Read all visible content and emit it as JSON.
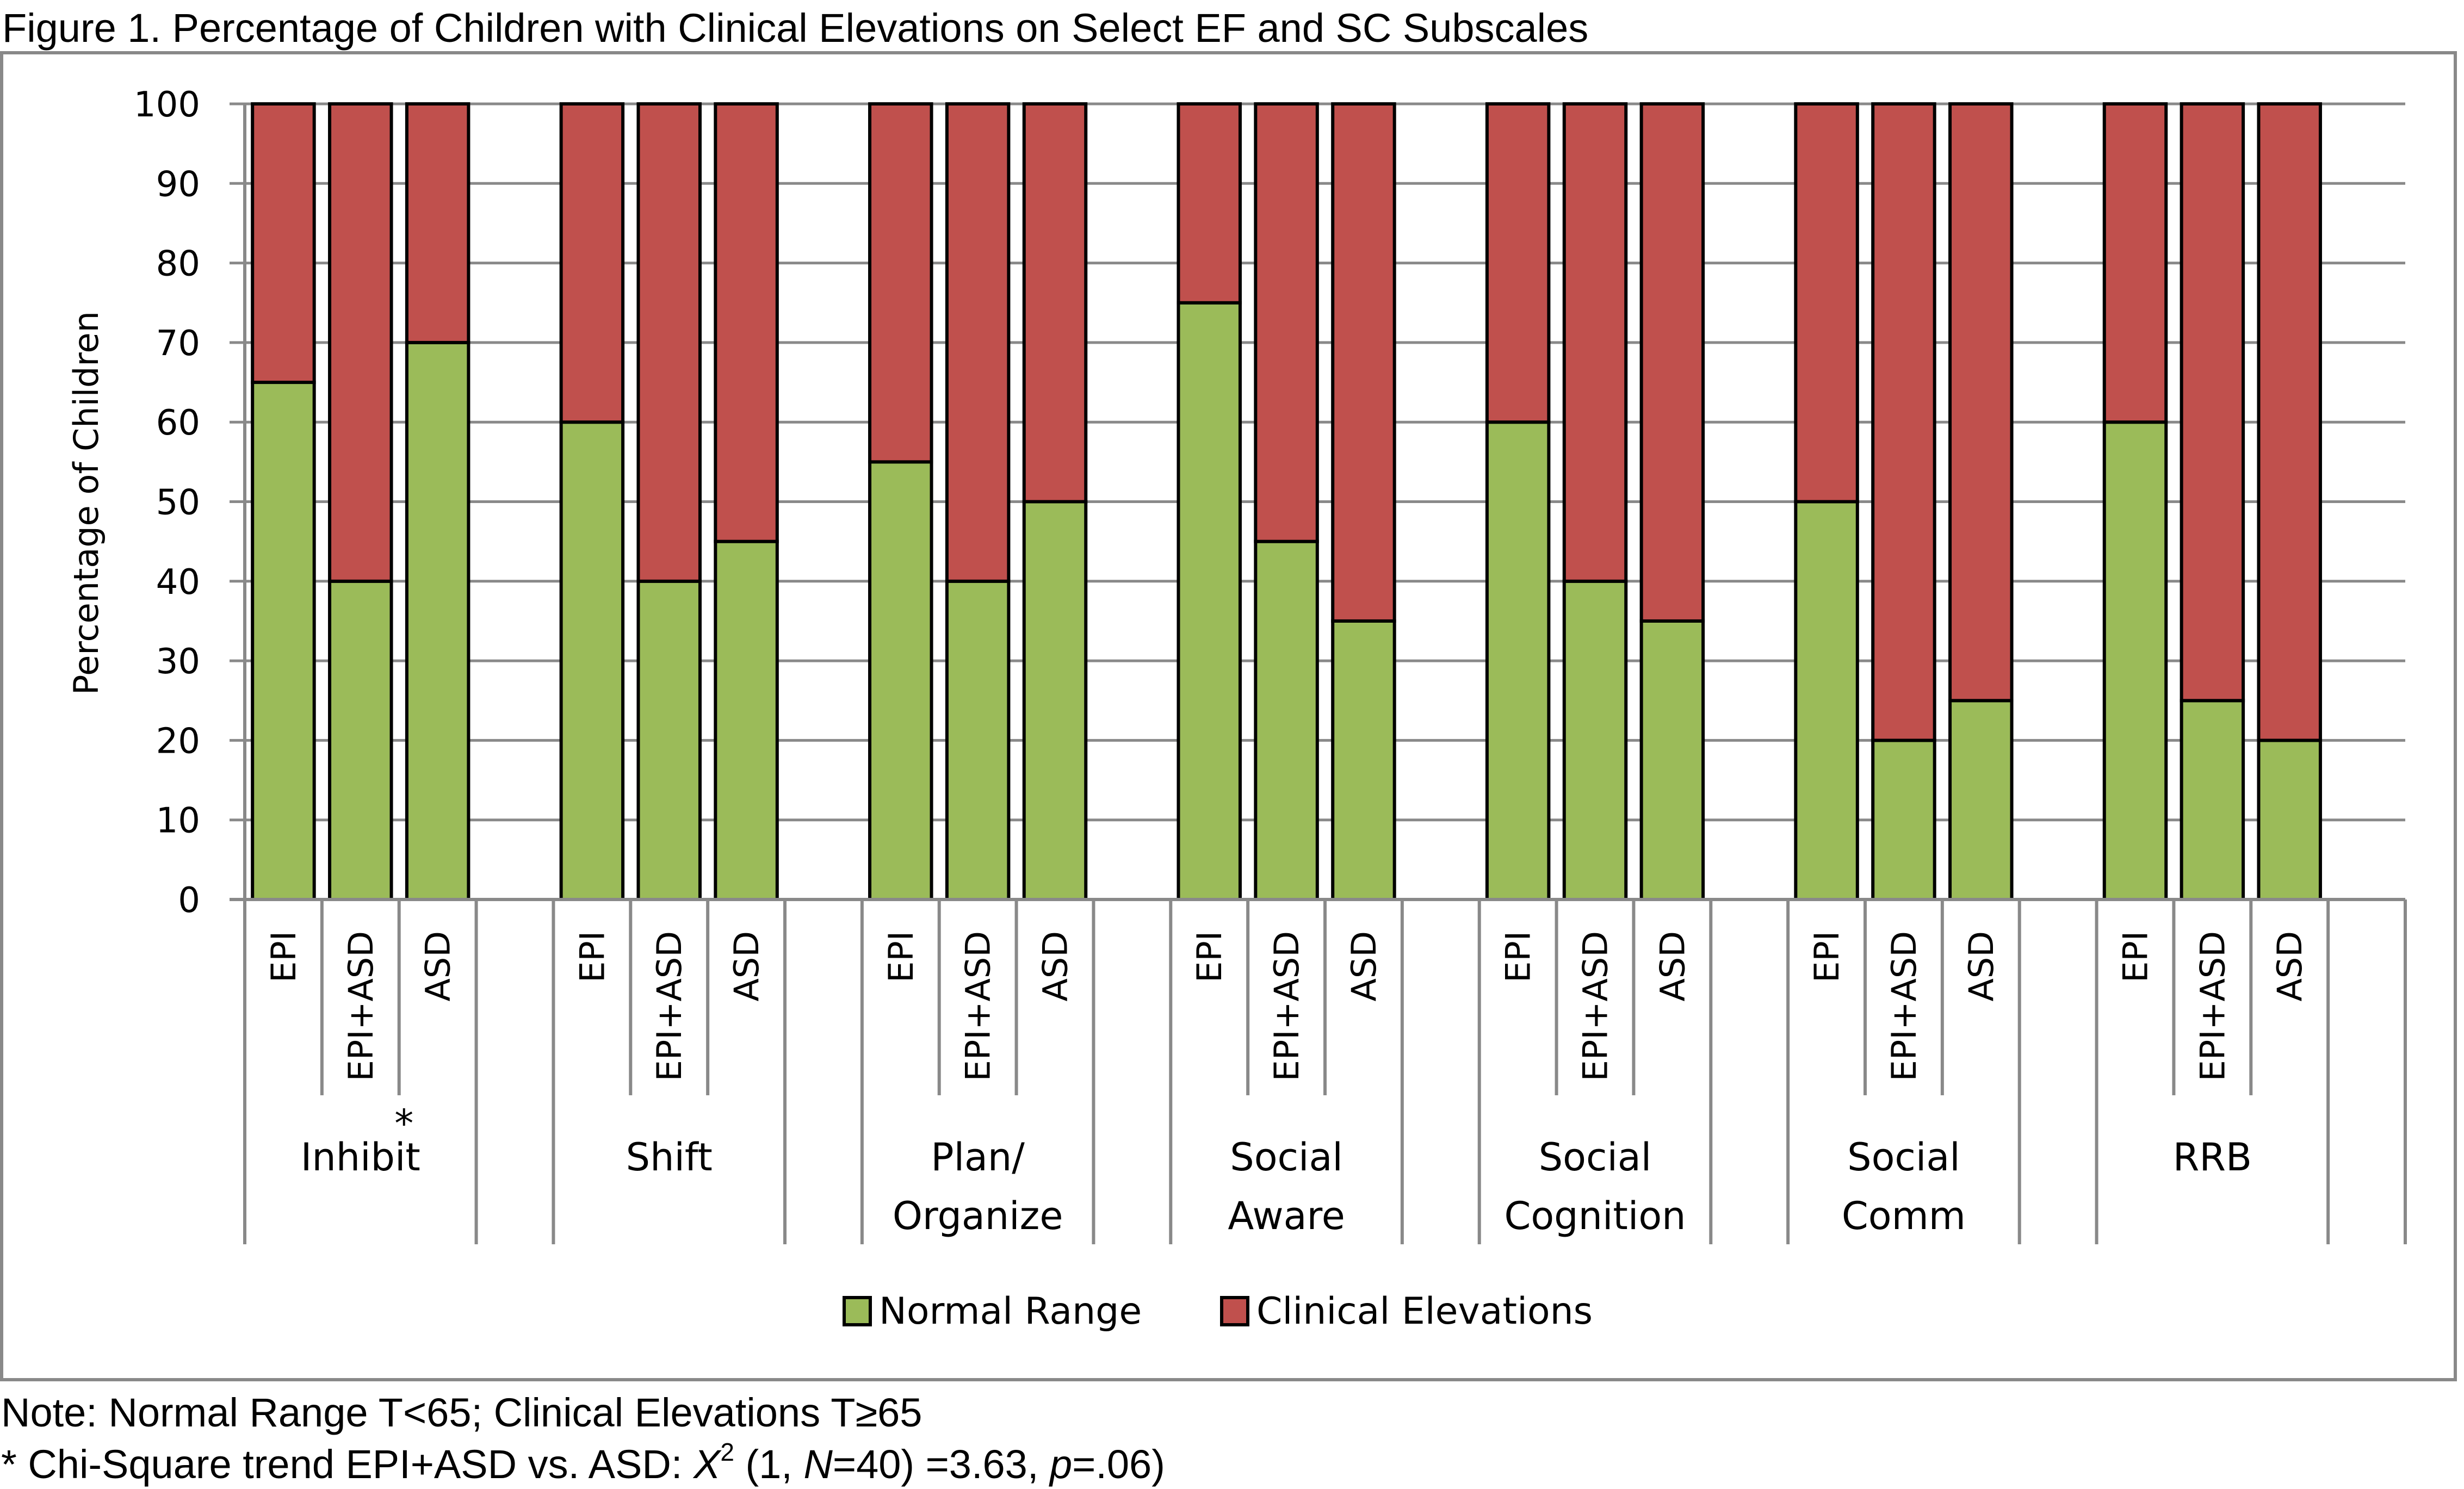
{
  "figure": {
    "title": "Figure 1. Percentage of Children with Clinical Elevations on Select EF and SC Subscales",
    "note_line1": "Note: Normal Range T<65; Clinical Elevations T≥65",
    "note_line2": {
      "prefix": "* Chi-Square trend EPI+ASD vs. ASD: ",
      "stat_symbol": "X",
      "stat_superscript": "2",
      "paren_open": " (1, ",
      "n_symbol": "N",
      "n_value": "=40) =3.63, ",
      "p_symbol": "p",
      "p_value": "=.06)"
    }
  },
  "chart_data": {
    "type": "bar",
    "stacked": true,
    "title": "Figure 1. Percentage of Children with Clinical Elevations on Select EF and SC Subscales",
    "xlabel": "",
    "ylabel": "Percentage of Children",
    "ylim": [
      0,
      100
    ],
    "yticks": [
      0,
      10,
      20,
      30,
      40,
      50,
      60,
      70,
      80,
      90,
      100
    ],
    "grid": true,
    "legend_position": "bottom",
    "subgroups": [
      "EPI",
      "EPI+ASD",
      "ASD"
    ],
    "groups": [
      {
        "label_lines": [
          "Inhibit"
        ],
        "annotation": "*"
      },
      {
        "label_lines": [
          "Shift"
        ],
        "annotation": ""
      },
      {
        "label_lines": [
          "Plan/",
          "Organize"
        ],
        "annotation": ""
      },
      {
        "label_lines": [
          "Social",
          "Aware"
        ],
        "annotation": ""
      },
      {
        "label_lines": [
          "Social",
          "Cognition"
        ],
        "annotation": ""
      },
      {
        "label_lines": [
          "Social",
          "Comm"
        ],
        "annotation": ""
      },
      {
        "label_lines": [
          "RRB"
        ],
        "annotation": ""
      }
    ],
    "categories": [
      "Inhibit EPI",
      "Inhibit EPI+ASD",
      "Inhibit ASD",
      "Shift EPI",
      "Shift EPI+ASD",
      "Shift ASD",
      "Plan/Organize EPI",
      "Plan/Organize EPI+ASD",
      "Plan/Organize ASD",
      "Social Aware EPI",
      "Social Aware EPI+ASD",
      "Social Aware ASD",
      "Social Cognition EPI",
      "Social Cognition EPI+ASD",
      "Social Cognition ASD",
      "Social Comm EPI",
      "Social Comm EPI+ASD",
      "Social Comm ASD",
      "RRB EPI",
      "RRB EPI+ASD",
      "RRB ASD"
    ],
    "series": [
      {
        "name": "Normal Range",
        "color": "#9bbb59",
        "values": [
          65,
          40,
          70,
          60,
          40,
          45,
          55,
          40,
          50,
          75,
          45,
          35,
          60,
          40,
          35,
          50,
          20,
          25,
          60,
          25,
          20
        ]
      },
      {
        "name": "Clinical Elevations",
        "color": "#c0504d",
        "values": [
          35,
          60,
          30,
          40,
          60,
          55,
          45,
          60,
          50,
          25,
          55,
          65,
          40,
          60,
          65,
          50,
          80,
          75,
          40,
          75,
          80
        ]
      }
    ]
  }
}
